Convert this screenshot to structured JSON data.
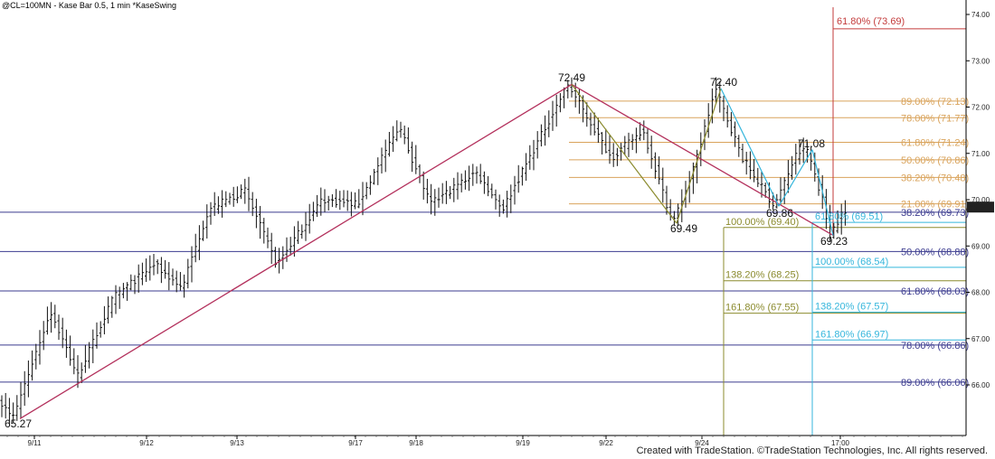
{
  "header": {
    "symbol": "@CL=100MN - Kase Bar 0.5, 1 min",
    "study": "*KaseSwing"
  },
  "footer": {
    "copyright": "Created with TradeStation. ©TradeStation Technologies, Inc. All rights reserved."
  },
  "colors": {
    "navy": "#3b3b8f",
    "orange": "#d9a35b",
    "olive": "#8b8b2e",
    "cyan": "#35b6dc",
    "red": "#c33b3b",
    "crimson": "#b3305c",
    "bars": "#111111"
  },
  "chart_data": {
    "type": "bar",
    "ylim": [
      65.0,
      74.0
    ],
    "x_tick_labels": [
      "9/11",
      "9/12",
      "9/13",
      "9/17",
      "9/18",
      "9/19",
      "9/22",
      "9/24",
      "17:00"
    ],
    "y_tick_labels": [
      "74.00",
      "73.00",
      "72.00",
      "71.00",
      "70.00",
      "69.00",
      "68.00",
      "67.00",
      "66.00"
    ],
    "current_price": "69.84",
    "swing_points": [
      {
        "label": "65.27",
        "value": 65.27
      },
      {
        "label": "72.49",
        "value": 72.49
      },
      {
        "label": "69.49",
        "value": 69.49
      },
      {
        "label": "72.40",
        "value": 72.4
      },
      {
        "label": "69.86",
        "value": 69.86
      },
      {
        "label": "71.08",
        "value": 71.08
      },
      {
        "label": "69.23",
        "value": 69.23
      }
    ],
    "retracement_levels": [
      {
        "label": "38.20% (69.73)",
        "value": 69.73
      },
      {
        "label": "50.00% (68.88)",
        "value": 68.88
      },
      {
        "label": "61.80% (68.03)",
        "value": 68.03
      },
      {
        "label": "78.00% (66.86)",
        "value": 66.86
      },
      {
        "label": "89.00% (66.06)",
        "value": 66.06
      }
    ],
    "upper_retracements": [
      {
        "label": "89.00% (72.13)",
        "value": 72.13
      },
      {
        "label": "78.00% (71.77)",
        "value": 71.77
      },
      {
        "label": "61.80% (71.24)",
        "value": 71.24
      },
      {
        "label": "50.00% (70.86)",
        "value": 70.86
      },
      {
        "label": "38.20% (70.48)",
        "value": 70.48
      },
      {
        "label": "21.00% (69.91)",
        "value": 69.91
      }
    ],
    "olive_projections": [
      {
        "label": "100.00% (69.40)",
        "value": 69.4
      },
      {
        "label": "138.20% (68.25)",
        "value": 68.25
      },
      {
        "label": "161.80% (67.55)",
        "value": 67.55
      }
    ],
    "cyan_projections": [
      {
        "label": "61.80% (69.51)",
        "value": 69.51
      },
      {
        "label": "100.00% (68.54)",
        "value": 68.54
      },
      {
        "label": "138.20% (67.57)",
        "value": 67.57
      },
      {
        "label": "161.80% (66.97)",
        "value": 66.97
      }
    ],
    "red_target": {
      "label": "61.80% (73.69)",
      "value": 73.69
    }
  }
}
